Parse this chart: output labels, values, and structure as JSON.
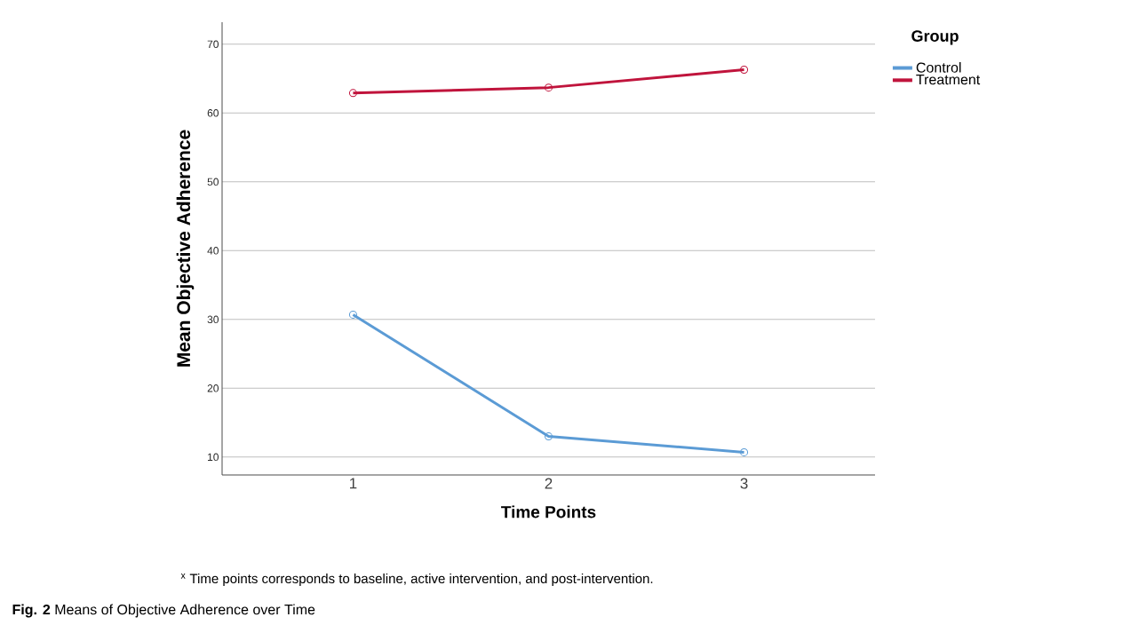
{
  "chart_data": {
    "type": "line",
    "xlabel": "Time Points",
    "ylabel": "Mean Objective Adherence",
    "legend_title": "Group",
    "x": [
      1,
      2,
      3
    ],
    "xlim": [
      0.33,
      3.67
    ],
    "xticks": [
      1,
      2,
      3
    ],
    "ylim": [
      7.4,
      73.2
    ],
    "yticks": [
      10,
      20,
      30,
      40,
      50,
      60,
      70
    ],
    "series": [
      {
        "name": "Control",
        "color": "#5b9bd5",
        "values": [
          30.7,
          13.0,
          10.7
        ]
      },
      {
        "name": "Treatment",
        "color": "#c0143c",
        "values": [
          62.9,
          63.7,
          66.3
        ]
      }
    ],
    "grid": "y",
    "legend": "top right",
    "marker": "circle",
    "line_style": "solid",
    "annotations": [
      "$^{x}$ Time points corresponds to baseline, active intervention, and post-intervention.",
      "**Fig. 2** Means of Objective Adherence over Time"
    ]
  }
}
